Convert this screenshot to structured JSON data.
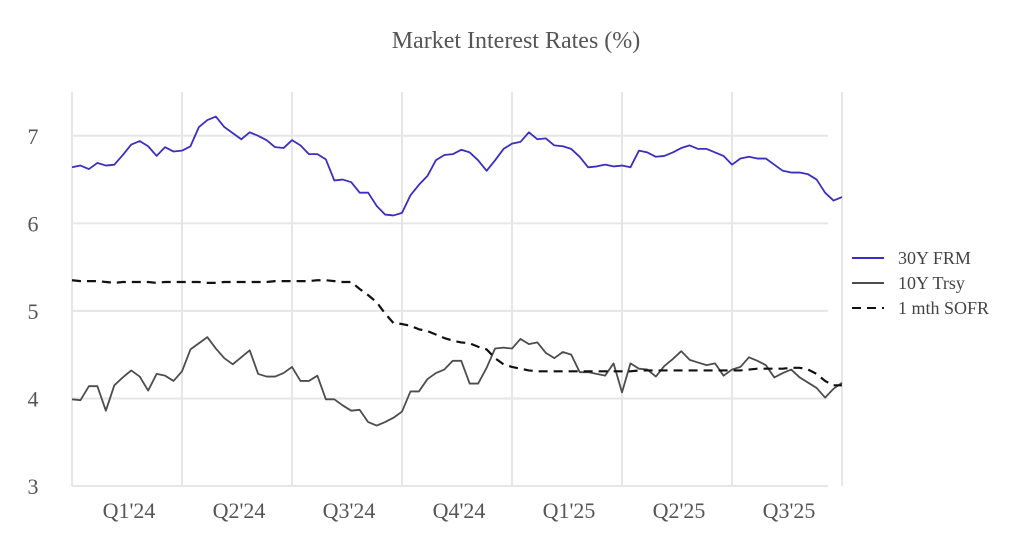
{
  "chart_data": {
    "type": "line",
    "title": "Market Interest Rates (%)",
    "xlabel": "",
    "ylabel": "",
    "ylim": [
      3,
      7.5
    ],
    "yticks": [
      3,
      4,
      5,
      6,
      7
    ],
    "grid": "vertical at quarter boundaries, horizontal at y ticks",
    "legend_position": "right",
    "x_tick_labels": [
      "Q1'24",
      "Q2'24",
      "Q3'24",
      "Q4'24",
      "Q1'25",
      "Q2'25",
      "Q3'25"
    ],
    "x_points_per_quarter": 13,
    "series": [
      {
        "name": "30Y FRM",
        "color": "#3a2fc0",
        "dash": "solid",
        "values": [
          6.64,
          6.66,
          6.62,
          6.69,
          6.66,
          6.67,
          6.78,
          6.9,
          6.94,
          6.88,
          6.77,
          6.87,
          6.82,
          6.83,
          6.88,
          7.1,
          7.18,
          7.22,
          7.1,
          7.03,
          6.96,
          7.04,
          7.0,
          6.95,
          6.87,
          6.86,
          6.95,
          6.89,
          6.79,
          6.79,
          6.73,
          6.49,
          6.5,
          6.47,
          6.35,
          6.35,
          6.2,
          6.1,
          6.09,
          6.12,
          6.32,
          6.44,
          6.54,
          6.72,
          6.78,
          6.79,
          6.84,
          6.81,
          6.72,
          6.6,
          6.72,
          6.85,
          6.91,
          6.93,
          7.04,
          6.96,
          6.97,
          6.89,
          6.88,
          6.85,
          6.76,
          6.64,
          6.65,
          6.67,
          6.65,
          6.66,
          6.64,
          6.83,
          6.81,
          6.76,
          6.77,
          6.81,
          6.86,
          6.89,
          6.85,
          6.85,
          6.81,
          6.77,
          6.67,
          6.74,
          6.76,
          6.74,
          6.74,
          6.67,
          6.6,
          6.58,
          6.58,
          6.56,
          6.5,
          6.35,
          6.26,
          6.3
        ]
      },
      {
        "name": "10Y Trsy",
        "color": "#4d4d4d",
        "dash": "solid",
        "values": [
          3.99,
          3.98,
          4.14,
          4.14,
          3.86,
          4.15,
          4.24,
          4.32,
          4.25,
          4.09,
          4.28,
          4.26,
          4.2,
          4.31,
          4.56,
          4.63,
          4.7,
          4.57,
          4.46,
          4.39,
          4.47,
          4.55,
          4.28,
          4.25,
          4.25,
          4.29,
          4.36,
          4.2,
          4.2,
          4.26,
          3.99,
          3.99,
          3.92,
          3.86,
          3.87,
          3.73,
          3.69,
          3.73,
          3.78,
          3.85,
          4.08,
          4.08,
          4.22,
          4.29,
          4.33,
          4.43,
          4.43,
          4.17,
          4.17,
          4.35,
          4.57,
          4.58,
          4.57,
          4.68,
          4.62,
          4.64,
          4.52,
          4.46,
          4.53,
          4.5,
          4.3,
          4.3,
          4.28,
          4.26,
          4.4,
          4.07,
          4.4,
          4.34,
          4.33,
          4.25,
          4.37,
          4.45,
          4.54,
          4.44,
          4.41,
          4.38,
          4.4,
          4.26,
          4.33,
          4.36,
          4.47,
          4.43,
          4.38,
          4.24,
          4.29,
          4.33,
          4.24,
          4.18,
          4.12,
          4.01,
          4.11,
          4.18
        ]
      },
      {
        "name": "1 mth SOFR",
        "color": "#111111",
        "dash": "dashed",
        "values": [
          5.35,
          5.34,
          5.34,
          5.34,
          5.33,
          5.32,
          5.33,
          5.33,
          5.33,
          5.33,
          5.32,
          5.33,
          5.33,
          5.33,
          5.33,
          5.33,
          5.32,
          5.32,
          5.33,
          5.33,
          5.33,
          5.33,
          5.33,
          5.33,
          5.34,
          5.34,
          5.34,
          5.34,
          5.34,
          5.35,
          5.35,
          5.34,
          5.33,
          5.33,
          5.25,
          5.18,
          5.1,
          4.97,
          4.86,
          4.85,
          4.83,
          4.79,
          4.77,
          4.73,
          4.69,
          4.66,
          4.64,
          4.63,
          4.59,
          4.56,
          4.46,
          4.39,
          4.36,
          4.34,
          4.32,
          4.31,
          4.31,
          4.31,
          4.31,
          4.31,
          4.31,
          4.31,
          4.31,
          4.31,
          4.31,
          4.31,
          4.31,
          4.32,
          4.32,
          4.32,
          4.32,
          4.32,
          4.32,
          4.32,
          4.32,
          4.32,
          4.32,
          4.32,
          4.32,
          4.32,
          4.33,
          4.34,
          4.34,
          4.34,
          4.34,
          4.35,
          4.35,
          4.33,
          4.28,
          4.2,
          4.15,
          4.15
        ]
      }
    ]
  }
}
